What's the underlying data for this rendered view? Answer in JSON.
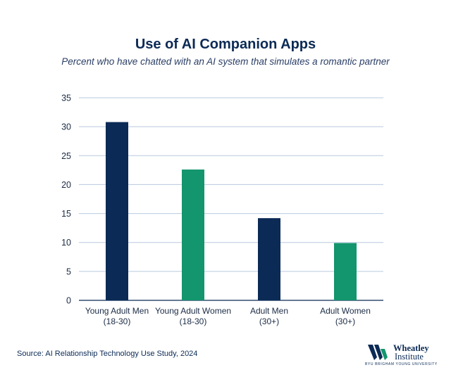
{
  "header": {
    "title": "Use of AI Companion Apps",
    "subtitle": "Percent who have chatted with an AI system that simulates a romantic partner"
  },
  "footer": {
    "source": "Source: AI Relationship Technology Use Study, 2024"
  },
  "logo": {
    "name_line1": "Wheatley",
    "name_line2": "Institute",
    "tagline": "BYU  BRIGHAM YOUNG UNIVERSITY"
  },
  "colors": {
    "navy": "#0b2a55",
    "green": "#13956d",
    "grid": "#b9c9dd"
  },
  "chart_data": {
    "type": "bar",
    "title": "Use of AI Companion Apps",
    "subtitle": "Percent who have chatted with an AI system that simulates a romantic partner",
    "categories": [
      [
        "Young Adult Men",
        "(18-30)"
      ],
      [
        "Young Adult Women",
        "(18-30)"
      ],
      [
        "Adult Men",
        "(30+)"
      ],
      [
        "Adult Women",
        "(30+)"
      ]
    ],
    "values": [
      30.8,
      22.6,
      14.2,
      9.9
    ],
    "bar_colors": [
      "#0b2a55",
      "#13956d",
      "#0b2a55",
      "#13956d"
    ],
    "ylim": [
      0,
      35
    ],
    "yticks": [
      0,
      5,
      10,
      15,
      20,
      25,
      30,
      35
    ],
    "xlabel": "",
    "ylabel": "",
    "grid": true
  }
}
